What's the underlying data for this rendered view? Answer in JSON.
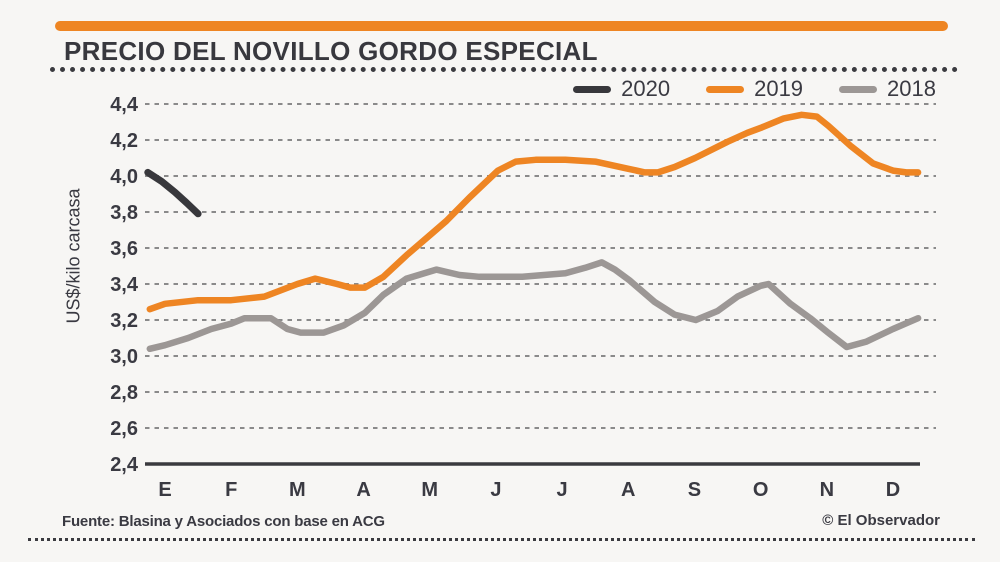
{
  "header": {
    "title": "PRECIO DEL NOVILLO GORDO ESPECIAL"
  },
  "legend": {
    "items": [
      {
        "label": "2020",
        "color": "#38383c"
      },
      {
        "label": "2019",
        "color": "#ee8523"
      },
      {
        "label": "2018",
        "color": "#9c9795"
      }
    ]
  },
  "footer": {
    "source": "Fuente: Blasina y Asociados con base en ACG",
    "credit": "© El Observador"
  },
  "colors": {
    "background": "#f7f6f4",
    "accent_bar": "#ee8523",
    "text": "#3a3a42",
    "gridline": "#8a8a8a",
    "axis": "#3a3a3e"
  },
  "chart_data": {
    "type": "line",
    "title": "PRECIO DEL NOVILLO GORDO ESPECIAL",
    "xlabel": "",
    "ylabel": "US$/kilo carcasa",
    "ylim": [
      2.4,
      4.4
    ],
    "grid": "horizontal-dashed",
    "legend_position": "top-right",
    "x_tick_labels": [
      "E",
      "F",
      "M",
      "A",
      "M",
      "J",
      "J",
      "A",
      "S",
      "O",
      "N",
      "D"
    ],
    "y_ticks": [
      {
        "label": "4,4",
        "value": 4.4
      },
      {
        "label": "4,2",
        "value": 4.2
      },
      {
        "label": "4,0",
        "value": 4.0
      },
      {
        "label": "3,8",
        "value": 3.8
      },
      {
        "label": "3,6",
        "value": 3.6
      },
      {
        "label": "3,4",
        "value": 3.4
      },
      {
        "label": "3,2",
        "value": 3.2
      },
      {
        "label": "3,0",
        "value": 3.0
      },
      {
        "label": "2,8",
        "value": 2.8
      },
      {
        "label": "2,6",
        "value": 2.6
      },
      {
        "label": "2,4",
        "value": 2.4
      }
    ],
    "series": [
      {
        "name": "2018",
        "color": "#9c9795",
        "width": 6.5,
        "points": [
          [
            -0.23,
            3.04
          ],
          [
            0,
            3.06
          ],
          [
            0.35,
            3.1
          ],
          [
            0.7,
            3.15
          ],
          [
            1,
            3.18
          ],
          [
            1.2,
            3.21
          ],
          [
            1.6,
            3.21
          ],
          [
            1.85,
            3.15
          ],
          [
            2.05,
            3.13
          ],
          [
            2.4,
            3.13
          ],
          [
            2.7,
            3.17
          ],
          [
            3.02,
            3.24
          ],
          [
            3.3,
            3.34
          ],
          [
            3.65,
            3.43
          ],
          [
            4.1,
            3.48
          ],
          [
            4.45,
            3.45
          ],
          [
            4.75,
            3.44
          ],
          [
            5.4,
            3.44
          ],
          [
            6.05,
            3.46
          ],
          [
            6.35,
            3.49
          ],
          [
            6.6,
            3.52
          ],
          [
            6.8,
            3.48
          ],
          [
            7.02,
            3.42
          ],
          [
            7.4,
            3.3
          ],
          [
            7.7,
            3.23
          ],
          [
            8.02,
            3.2
          ],
          [
            8.35,
            3.25
          ],
          [
            8.65,
            3.33
          ],
          [
            9.0,
            3.39
          ],
          [
            9.12,
            3.4
          ],
          [
            9.45,
            3.29
          ],
          [
            9.75,
            3.21
          ],
          [
            10.02,
            3.13
          ],
          [
            10.3,
            3.05
          ],
          [
            10.6,
            3.08
          ],
          [
            11,
            3.15
          ],
          [
            11.38,
            3.21
          ]
        ]
      },
      {
        "name": "2019",
        "color": "#ee8523",
        "width": 6.5,
        "points": [
          [
            -0.23,
            3.26
          ],
          [
            0,
            3.29
          ],
          [
            0.5,
            3.31
          ],
          [
            1,
            3.31
          ],
          [
            1.5,
            3.33
          ],
          [
            2,
            3.4
          ],
          [
            2.27,
            3.43
          ],
          [
            2.6,
            3.4
          ],
          [
            2.8,
            3.38
          ],
          [
            3.02,
            3.38
          ],
          [
            3.3,
            3.44
          ],
          [
            3.65,
            3.56
          ],
          [
            4.03,
            3.68
          ],
          [
            4.25,
            3.75
          ],
          [
            4.6,
            3.88
          ],
          [
            5.03,
            4.03
          ],
          [
            5.3,
            4.08
          ],
          [
            5.6,
            4.09
          ],
          [
            6.05,
            4.09
          ],
          [
            6.5,
            4.08
          ],
          [
            7.0,
            4.04
          ],
          [
            7.25,
            4.02
          ],
          [
            7.45,
            4.02
          ],
          [
            7.7,
            4.05
          ],
          [
            8.01,
            4.1
          ],
          [
            8.5,
            4.19
          ],
          [
            8.8,
            4.24
          ],
          [
            9.02,
            4.27
          ],
          [
            9.35,
            4.32
          ],
          [
            9.62,
            4.34
          ],
          [
            9.85,
            4.33
          ],
          [
            10.02,
            4.28
          ],
          [
            10.35,
            4.17
          ],
          [
            10.7,
            4.07
          ],
          [
            11,
            4.03
          ],
          [
            11.2,
            4.02
          ],
          [
            11.38,
            4.02
          ]
        ]
      },
      {
        "name": "2020",
        "color": "#38383c",
        "width": 7,
        "points": [
          [
            -0.26,
            4.02
          ],
          [
            -0.05,
            3.97
          ],
          [
            0.15,
            3.91
          ],
          [
            0.33,
            3.85
          ],
          [
            0.5,
            3.79
          ]
        ]
      }
    ]
  }
}
